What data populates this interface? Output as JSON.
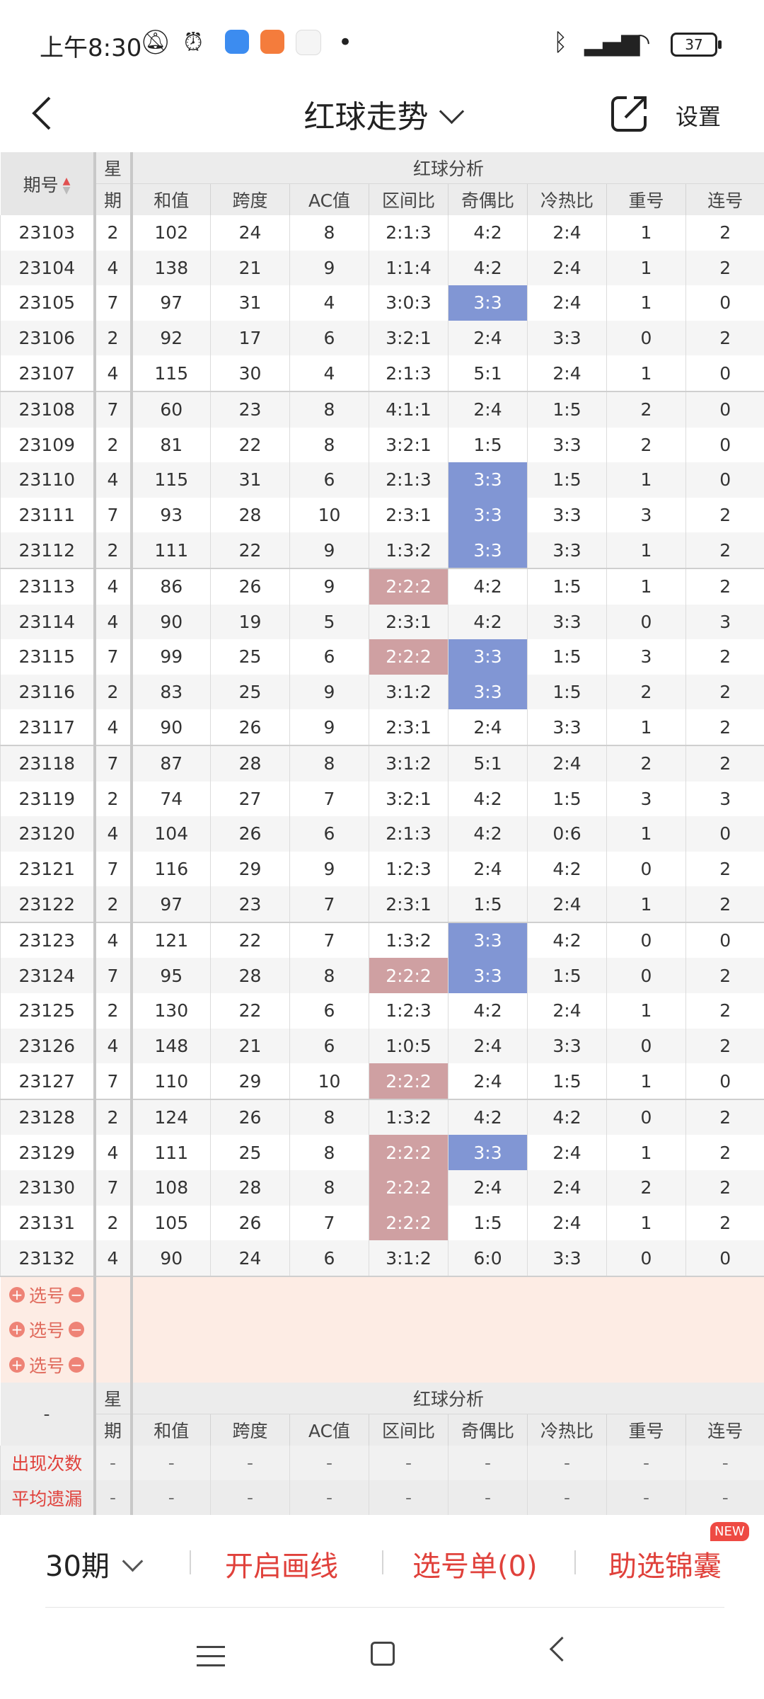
{
  "status_bar": {
    "time": "上午8:30",
    "battery": "37"
  },
  "title_bar": {
    "title": "红球走势",
    "settings": "设置"
  },
  "table": {
    "qihao_header": "期号",
    "xing_top": "星",
    "xing_bottom": "期",
    "group_header": "红球分析",
    "columns": [
      "和值",
      "跨度",
      "AC值",
      "区间比",
      "奇偶比",
      "冷热比",
      "重号",
      "连号"
    ],
    "rows": [
      [
        "23103",
        "2",
        "102",
        "24",
        "8",
        "2:1:3",
        "4:2",
        "2:4",
        "1",
        "2"
      ],
      [
        "23104",
        "4",
        "138",
        "21",
        "9",
        "1:1:4",
        "4:2",
        "2:4",
        "1",
        "2"
      ],
      [
        "23105",
        "7",
        "97",
        "31",
        "4",
        "3:0:3",
        "3:3",
        "2:4",
        "1",
        "0"
      ],
      [
        "23106",
        "2",
        "92",
        "17",
        "6",
        "3:2:1",
        "2:4",
        "3:3",
        "0",
        "2"
      ],
      [
        "23107",
        "4",
        "115",
        "30",
        "4",
        "2:1:3",
        "5:1",
        "2:4",
        "1",
        "0"
      ],
      [
        "23108",
        "7",
        "60",
        "23",
        "8",
        "4:1:1",
        "2:4",
        "1:5",
        "2",
        "0"
      ],
      [
        "23109",
        "2",
        "81",
        "22",
        "8",
        "3:2:1",
        "1:5",
        "3:3",
        "2",
        "0"
      ],
      [
        "23110",
        "4",
        "115",
        "31",
        "6",
        "2:1:3",
        "3:3",
        "1:5",
        "1",
        "0"
      ],
      [
        "23111",
        "7",
        "93",
        "28",
        "10",
        "2:3:1",
        "3:3",
        "3:3",
        "3",
        "2"
      ],
      [
        "23112",
        "2",
        "111",
        "22",
        "9",
        "1:3:2",
        "3:3",
        "3:3",
        "1",
        "2"
      ],
      [
        "23113",
        "4",
        "86",
        "26",
        "9",
        "2:2:2",
        "4:2",
        "1:5",
        "1",
        "2"
      ],
      [
        "23114",
        "4",
        "90",
        "19",
        "5",
        "2:3:1",
        "4:2",
        "3:3",
        "0",
        "3"
      ],
      [
        "23115",
        "7",
        "99",
        "25",
        "6",
        "2:2:2",
        "3:3",
        "1:5",
        "3",
        "2"
      ],
      [
        "23116",
        "2",
        "83",
        "25",
        "9",
        "3:1:2",
        "3:3",
        "1:5",
        "2",
        "2"
      ],
      [
        "23117",
        "4",
        "90",
        "26",
        "9",
        "2:3:1",
        "2:4",
        "3:3",
        "1",
        "2"
      ],
      [
        "23118",
        "7",
        "87",
        "28",
        "8",
        "3:1:2",
        "5:1",
        "2:4",
        "2",
        "2"
      ],
      [
        "23119",
        "2",
        "74",
        "27",
        "7",
        "3:2:1",
        "4:2",
        "1:5",
        "3",
        "3"
      ],
      [
        "23120",
        "4",
        "104",
        "26",
        "6",
        "2:1:3",
        "4:2",
        "0:6",
        "1",
        "0"
      ],
      [
        "23121",
        "7",
        "116",
        "29",
        "9",
        "1:2:3",
        "2:4",
        "4:2",
        "0",
        "2"
      ],
      [
        "23122",
        "2",
        "97",
        "23",
        "7",
        "2:3:1",
        "1:5",
        "2:4",
        "1",
        "2"
      ],
      [
        "23123",
        "4",
        "121",
        "22",
        "7",
        "1:3:2",
        "3:3",
        "4:2",
        "0",
        "0"
      ],
      [
        "23124",
        "7",
        "95",
        "28",
        "8",
        "2:2:2",
        "3:3",
        "1:5",
        "0",
        "2"
      ],
      [
        "23125",
        "2",
        "130",
        "22",
        "6",
        "1:2:3",
        "4:2",
        "2:4",
        "1",
        "2"
      ],
      [
        "23126",
        "4",
        "148",
        "21",
        "6",
        "1:0:5",
        "2:4",
        "3:3",
        "0",
        "2"
      ],
      [
        "23127",
        "7",
        "110",
        "29",
        "10",
        "2:2:2",
        "2:4",
        "1:5",
        "1",
        "0"
      ],
      [
        "23128",
        "2",
        "124",
        "26",
        "8",
        "1:3:2",
        "4:2",
        "4:2",
        "0",
        "2"
      ],
      [
        "23129",
        "4",
        "111",
        "25",
        "8",
        "2:2:2",
        "3:3",
        "2:4",
        "1",
        "2"
      ],
      [
        "23130",
        "7",
        "108",
        "28",
        "8",
        "2:2:2",
        "2:4",
        "2:4",
        "2",
        "2"
      ],
      [
        "23131",
        "2",
        "105",
        "26",
        "7",
        "2:2:2",
        "1:5",
        "2:4",
        "1",
        "2"
      ],
      [
        "23132",
        "4",
        "90",
        "24",
        "6",
        "3:1:2",
        "6:0",
        "3:3",
        "0",
        "0"
      ]
    ],
    "pick_label": "选号",
    "footer_corner": "-",
    "stats": [
      {
        "label": "出现次数",
        "values": [
          "-",
          "-",
          "-",
          "-",
          "-",
          "-",
          "-",
          "-",
          "-"
        ]
      },
      {
        "label": "平均遗漏",
        "values": [
          "-",
          "-",
          "-",
          "-",
          "-",
          "-",
          "-",
          "-",
          "-"
        ]
      }
    ]
  },
  "bottom_bar": {
    "period": "30期",
    "draw_line": "开启画线",
    "pick_list": "选号单(0)",
    "helper": "助选锦囊",
    "new_badge": "NEW"
  },
  "colors": {
    "accent_red": "#e0413b",
    "highlight_blue": "#8196d4",
    "highlight_red": "#cfa0a2",
    "pick_bg": "#fdece4"
  },
  "icons": [
    "mute-icon",
    "alarm-icon",
    "bluetooth-icon",
    "signal-icon",
    "wifi-icon",
    "battery-icon",
    "back-arrow-icon",
    "share-icon",
    "chevron-down-icon",
    "plus-icon",
    "minus-icon"
  ]
}
